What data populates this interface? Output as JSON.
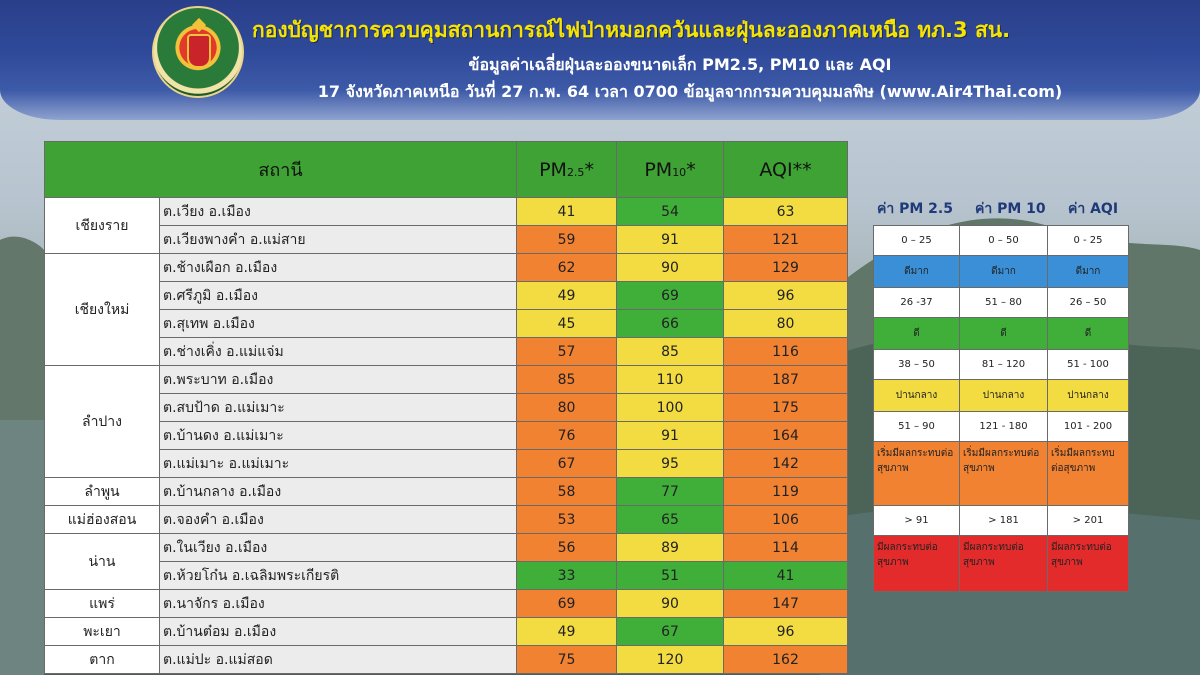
{
  "header": {
    "title": "กองบัญชาการควบคุมสถานการณ์ไฟป่าหมอกควันและฝุ่นละอองภาคเหนือ ทภ.3 สน.",
    "subtitle1": "ข้อมูลค่าเฉลี่ยฝุ่นละอองขนาดเล็ก PM2.5, PM10 และ AQI",
    "subtitle2": "17 จังหวัดภาคเหนือ วันที่ 27 ก.พ. 64 เวลา 0700 ข้อมูลจากกรมควบคุมมลพิษ (www.Air4Thai.com)"
  },
  "table": {
    "col_station": "สถานี",
    "col_pm25_base": "PM",
    "col_pm25_sub": "2.5",
    "col_pm10_base": "PM",
    "col_pm10_sub": "10",
    "col_star": "*",
    "col_aqi": "AQI**",
    "groups": [
      {
        "province": "เชียงราย",
        "rows": [
          {
            "site": "ต.เวียง อ.เมือง",
            "pm25": "41",
            "pm10": "54",
            "aqi": "63"
          },
          {
            "site": "ต.เวียงพางคำ อ.แม่สาย",
            "pm25": "59",
            "pm10": "91",
            "aqi": "121"
          }
        ]
      },
      {
        "province": "เชียงใหม่",
        "rows": [
          {
            "site": "ต.ช้างเผือก อ.เมือง",
            "pm25": "62",
            "pm10": "90",
            "aqi": "129"
          },
          {
            "site": "ต.ศรีภูมิ อ.เมือง",
            "pm25": "49",
            "pm10": "69",
            "aqi": "96"
          },
          {
            "site": "ต.สุเทพ อ.เมือง",
            "pm25": "45",
            "pm10": "66",
            "aqi": "80"
          },
          {
            "site": "ต.ช่างเคิ่ง อ.แม่แจ่ม",
            "pm25": "57",
            "pm10": "85",
            "aqi": "116"
          }
        ]
      },
      {
        "province": "ลำปาง",
        "rows": [
          {
            "site": "ต.พระบาท อ.เมือง",
            "pm25": "85",
            "pm10": "110",
            "aqi": "187"
          },
          {
            "site": "ต.สบป้าด อ.แม่เมาะ",
            "pm25": "80",
            "pm10": "100",
            "aqi": "175"
          },
          {
            "site": "ต.บ้านดง อ.แม่เมาะ",
            "pm25": "76",
            "pm10": "91",
            "aqi": "164"
          },
          {
            "site": "ต.แม่เมาะ อ.แม่เมาะ",
            "pm25": "67",
            "pm10": "95",
            "aqi": "142"
          }
        ]
      },
      {
        "province": "ลำพูน",
        "rows": [
          {
            "site": "ต.บ้านกลาง อ.เมือง",
            "pm25": "58",
            "pm10": "77",
            "aqi": "119"
          }
        ]
      },
      {
        "province": "แม่ฮ่องสอน",
        "rows": [
          {
            "site": "ต.จองคำ อ.เมือง",
            "pm25": "53",
            "pm10": "65",
            "aqi": "106"
          }
        ]
      },
      {
        "province": "น่าน",
        "rows": [
          {
            "site": "ต.ในเวียง อ.เมือง",
            "pm25": "56",
            "pm10": "89",
            "aqi": "114"
          },
          {
            "site": "ต.ห้วยโก๋น อ.เฉลิมพระเกียรติ",
            "pm25": "33",
            "pm10": "51",
            "aqi": "41"
          }
        ]
      },
      {
        "province": "แพร่",
        "rows": [
          {
            "site": "ต.นาจักร อ.เมือง",
            "pm25": "69",
            "pm10": "90",
            "aqi": "147"
          }
        ]
      },
      {
        "province": "พะเยา",
        "rows": [
          {
            "site": "ต.บ้านต๋อม อ.เมือง",
            "pm25": "49",
            "pm10": "67",
            "aqi": "96"
          }
        ]
      },
      {
        "province": "ตาก",
        "rows": [
          {
            "site": "ต.แม่ปะ อ.แม่สอด",
            "pm25": "75",
            "pm10": "120",
            "aqi": "162"
          }
        ]
      }
    ]
  },
  "legend": {
    "head_pm25": "ค่า PM 2.5",
    "head_pm10": "ค่า PM 10",
    "head_aqi": "ค่า AQI",
    "r1": [
      "0 – 25",
      "0 – 50",
      "0 - 25"
    ],
    "l1": [
      "ดีมาก",
      "ดีมาก",
      "ดีมาก"
    ],
    "r2": [
      "26 -37",
      "51 – 80",
      "26 – 50"
    ],
    "l2": [
      "ดี",
      "ดี",
      "ดี"
    ],
    "r3": [
      "38 – 50",
      "81 – 120",
      "51 - 100"
    ],
    "l3": [
      "ปานกลาง",
      "ปานกลาง",
      "ปานกลาง"
    ],
    "r4": [
      "51 – 90",
      "121 - 180",
      "101 - 200"
    ],
    "l4": [
      "เริ่มมีผลกระทบต่อสุขภาพ",
      "เริ่มมีผลกระทบต่อสุขภาพ",
      "เริ่มมีผลกระทบต่อสุขภาพ"
    ],
    "r5": [
      "> 91",
      "> 181",
      "> 201"
    ],
    "l5": [
      "มีผลกระทบต่อสุขภาพ",
      "มีผลกระทบต่อสุขภาพ",
      "มีผลกระทบต่อสุขภาพ"
    ]
  },
  "colors": {
    "very_good": "#3a8fd6",
    "good": "#3faf3a",
    "moderate": "#f2dc42",
    "starting_effect": "#f08232",
    "unhealthy": "#e42b2b",
    "table_header": "#3ea334"
  }
}
